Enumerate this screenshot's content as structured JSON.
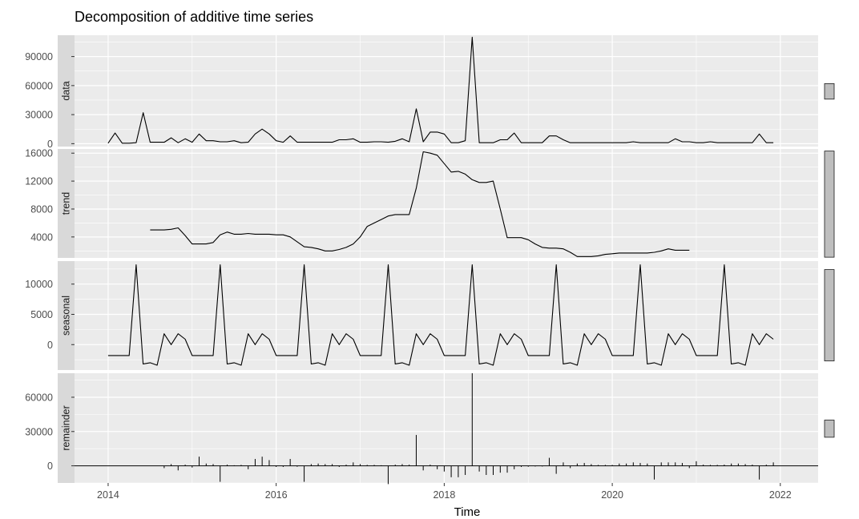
{
  "chart_data": {
    "type": "line",
    "title": "Decomposition of additive time series",
    "xlabel": "Time",
    "x_ticks": [
      2014,
      2016,
      2018,
      2020,
      2022
    ],
    "xlim": [
      2013.6,
      2022.45
    ],
    "colors": {
      "panel_bg": "#ebebeb",
      "grid": "#ffffff",
      "strip_bg": "#d9d9d9",
      "line": "#000000",
      "scale_bar": "#bebebe"
    },
    "panels": [
      {
        "name": "data",
        "type": "line",
        "ylim": [
          -3000,
          112000
        ],
        "y_ticks": [
          0,
          30000,
          60000,
          90000
        ],
        "y_tick_labels": [
          "0",
          "30000",
          "60000",
          "90000"
        ],
        "scale_bar": [
          46000,
          62000
        ],
        "series": [
          [
            2014.0,
            500
          ],
          [
            2014.083,
            11000
          ],
          [
            2014.167,
            500
          ],
          [
            2014.25,
            500
          ],
          [
            2014.333,
            1000
          ],
          [
            2014.417,
            32000
          ],
          [
            2014.5,
            1500
          ],
          [
            2014.583,
            1500
          ],
          [
            2014.667,
            1500
          ],
          [
            2014.75,
            6000
          ],
          [
            2014.833,
            1000
          ],
          [
            2014.917,
            5000
          ],
          [
            2015.0,
            1500
          ],
          [
            2015.083,
            10000
          ],
          [
            2015.167,
            3000
          ],
          [
            2015.25,
            3000
          ],
          [
            2015.333,
            2000
          ],
          [
            2015.417,
            2000
          ],
          [
            2015.5,
            3000
          ],
          [
            2015.583,
            1000
          ],
          [
            2015.667,
            1500
          ],
          [
            2015.75,
            10000
          ],
          [
            2015.833,
            15000
          ],
          [
            2015.917,
            10000
          ],
          [
            2016.0,
            3000
          ],
          [
            2016.083,
            1500
          ],
          [
            2016.167,
            8000
          ],
          [
            2016.25,
            1500
          ],
          [
            2016.333,
            1500
          ],
          [
            2016.417,
            1500
          ],
          [
            2016.5,
            1500
          ],
          [
            2016.583,
            1500
          ],
          [
            2016.667,
            1500
          ],
          [
            2016.75,
            4000
          ],
          [
            2016.833,
            4000
          ],
          [
            2016.917,
            5000
          ],
          [
            2017.0,
            1500
          ],
          [
            2017.083,
            1500
          ],
          [
            2017.167,
            2000
          ],
          [
            2017.25,
            2000
          ],
          [
            2017.333,
            1500
          ],
          [
            2017.417,
            2500
          ],
          [
            2017.5,
            5000
          ],
          [
            2017.583,
            2000
          ],
          [
            2017.667,
            36000
          ],
          [
            2017.75,
            2000
          ],
          [
            2017.833,
            12000
          ],
          [
            2017.917,
            12000
          ],
          [
            2018.0,
            10000
          ],
          [
            2018.083,
            1000
          ],
          [
            2018.167,
            1000
          ],
          [
            2018.25,
            3000
          ],
          [
            2018.333,
            110000
          ],
          [
            2018.417,
            1000
          ],
          [
            2018.5,
            1000
          ],
          [
            2018.583,
            1000
          ],
          [
            2018.667,
            4000
          ],
          [
            2018.75,
            4000
          ],
          [
            2018.833,
            11000
          ],
          [
            2018.917,
            1000
          ],
          [
            2019.0,
            1000
          ],
          [
            2019.083,
            1000
          ],
          [
            2019.167,
            1000
          ],
          [
            2019.25,
            8000
          ],
          [
            2019.333,
            8000
          ],
          [
            2019.417,
            4000
          ],
          [
            2019.5,
            1000
          ],
          [
            2019.583,
            1000
          ],
          [
            2019.667,
            1000
          ],
          [
            2019.75,
            1000
          ],
          [
            2019.833,
            1000
          ],
          [
            2019.917,
            1000
          ],
          [
            2020.0,
            1000
          ],
          [
            2020.083,
            1000
          ],
          [
            2020.167,
            1000
          ],
          [
            2020.25,
            2000
          ],
          [
            2020.333,
            1000
          ],
          [
            2020.417,
            1000
          ],
          [
            2020.5,
            1000
          ],
          [
            2020.583,
            1000
          ],
          [
            2020.667,
            1000
          ],
          [
            2020.75,
            5000
          ],
          [
            2020.833,
            2000
          ],
          [
            2020.917,
            2000
          ],
          [
            2021.0,
            1000
          ],
          [
            2021.083,
            1000
          ],
          [
            2021.167,
            2000
          ],
          [
            2021.25,
            1000
          ],
          [
            2021.333,
            1000
          ],
          [
            2021.417,
            1000
          ],
          [
            2021.5,
            1000
          ],
          [
            2021.583,
            1000
          ],
          [
            2021.667,
            1000
          ],
          [
            2021.75,
            10000
          ],
          [
            2021.833,
            1000
          ],
          [
            2021.917,
            1000
          ]
        ]
      },
      {
        "name": "trend",
        "type": "line",
        "ylim": [
          1000,
          16600
        ],
        "y_ticks": [
          4000,
          8000,
          12000,
          16000
        ],
        "y_tick_labels": [
          "4000",
          "8000",
          "12000",
          "16000"
        ],
        "scale_bar": [
          1100,
          16300
        ],
        "series": [
          [
            2014.5,
            5000
          ],
          [
            2014.583,
            5000
          ],
          [
            2014.667,
            5000
          ],
          [
            2014.75,
            5100
          ],
          [
            2014.833,
            5300
          ],
          [
            2014.917,
            4200
          ],
          [
            2015.0,
            3000
          ],
          [
            2015.083,
            3000
          ],
          [
            2015.167,
            3000
          ],
          [
            2015.25,
            3200
          ],
          [
            2015.333,
            4300
          ],
          [
            2015.417,
            4700
          ],
          [
            2015.5,
            4400
          ],
          [
            2015.583,
            4400
          ],
          [
            2015.667,
            4500
          ],
          [
            2015.75,
            4400
          ],
          [
            2015.833,
            4400
          ],
          [
            2015.917,
            4400
          ],
          [
            2016.0,
            4300
          ],
          [
            2016.083,
            4300
          ],
          [
            2016.167,
            4000
          ],
          [
            2016.25,
            3300
          ],
          [
            2016.333,
            2600
          ],
          [
            2016.417,
            2500
          ],
          [
            2016.5,
            2300
          ],
          [
            2016.583,
            2000
          ],
          [
            2016.667,
            2000
          ],
          [
            2016.75,
            2200
          ],
          [
            2016.833,
            2500
          ],
          [
            2016.917,
            3000
          ],
          [
            2017.0,
            4000
          ],
          [
            2017.083,
            5500
          ],
          [
            2017.167,
            6000
          ],
          [
            2017.25,
            6500
          ],
          [
            2017.333,
            7000
          ],
          [
            2017.417,
            7200
          ],
          [
            2017.5,
            7200
          ],
          [
            2017.583,
            7200
          ],
          [
            2017.667,
            11000
          ],
          [
            2017.75,
            16200
          ],
          [
            2017.833,
            16000
          ],
          [
            2017.917,
            15700
          ],
          [
            2018.0,
            14500
          ],
          [
            2018.083,
            13300
          ],
          [
            2018.167,
            13400
          ],
          [
            2018.25,
            13000
          ],
          [
            2018.333,
            12200
          ],
          [
            2018.417,
            11800
          ],
          [
            2018.5,
            11800
          ],
          [
            2018.583,
            12000
          ],
          [
            2018.667,
            8000
          ],
          [
            2018.75,
            3900
          ],
          [
            2018.833,
            3900
          ],
          [
            2018.917,
            3900
          ],
          [
            2019.0,
            3600
          ],
          [
            2019.083,
            3000
          ],
          [
            2019.167,
            2500
          ],
          [
            2019.25,
            2400
          ],
          [
            2019.333,
            2400
          ],
          [
            2019.417,
            2300
          ],
          [
            2019.5,
            1800
          ],
          [
            2019.583,
            1200
          ],
          [
            2019.667,
            1200
          ],
          [
            2019.75,
            1200
          ],
          [
            2019.833,
            1300
          ],
          [
            2019.917,
            1500
          ],
          [
            2020.0,
            1600
          ],
          [
            2020.083,
            1700
          ],
          [
            2020.167,
            1700
          ],
          [
            2020.25,
            1700
          ],
          [
            2020.333,
            1700
          ],
          [
            2020.417,
            1700
          ],
          [
            2020.5,
            1800
          ],
          [
            2020.583,
            2000
          ],
          [
            2020.667,
            2300
          ],
          [
            2020.75,
            2100
          ],
          [
            2020.833,
            2100
          ],
          [
            2020.917,
            2100
          ]
        ]
      },
      {
        "name": "seasonal",
        "type": "line",
        "ylim": [
          -4200,
          13800
        ],
        "y_ticks": [
          0,
          5000,
          10000
        ],
        "y_tick_labels": [
          "0",
          "5000",
          "10000"
        ],
        "scale_bar": [
          -2700,
          12400
        ],
        "season_pattern": [
          -1800,
          -1800,
          -1800,
          -1800,
          13200,
          -3200,
          -3000,
          -3400,
          1800,
          0,
          1800,
          900
        ],
        "season_start": 2014.0,
        "season_periods": 96
      },
      {
        "name": "remainder",
        "type": "bar",
        "ylim": [
          -15000,
          81000
        ],
        "y_ticks": [
          0,
          30000,
          60000
        ],
        "y_tick_labels": [
          "0",
          "30000",
          "60000"
        ],
        "scale_bar": [
          25000,
          40000
        ],
        "series": [
          [
            2014.667,
            -2000
          ],
          [
            2014.75,
            1500
          ],
          [
            2014.833,
            -4000
          ],
          [
            2014.917,
            1000
          ],
          [
            2015.0,
            -1500
          ],
          [
            2015.083,
            8000
          ],
          [
            2015.167,
            2000
          ],
          [
            2015.25,
            1500
          ],
          [
            2015.333,
            -14000
          ],
          [
            2015.417,
            1000
          ],
          [
            2015.5,
            500
          ],
          [
            2015.583,
            800
          ],
          [
            2015.667,
            -3000
          ],
          [
            2015.75,
            6000
          ],
          [
            2015.833,
            8000
          ],
          [
            2015.917,
            5000
          ],
          [
            2016.0,
            -1000
          ],
          [
            2016.083,
            -1000
          ],
          [
            2016.167,
            6000
          ],
          [
            2016.25,
            -800
          ],
          [
            2016.333,
            -14000
          ],
          [
            2016.417,
            1500
          ],
          [
            2016.5,
            2000
          ],
          [
            2016.583,
            1500
          ],
          [
            2016.667,
            1500
          ],
          [
            2016.75,
            -1000
          ],
          [
            2016.833,
            1000
          ],
          [
            2016.917,
            3000
          ],
          [
            2017.0,
            1500
          ],
          [
            2017.083,
            800
          ],
          [
            2017.167,
            800
          ],
          [
            2017.25,
            500
          ],
          [
            2017.333,
            -16000
          ],
          [
            2017.417,
            1000
          ],
          [
            2017.5,
            1500
          ],
          [
            2017.583,
            1000
          ],
          [
            2017.667,
            27000
          ],
          [
            2017.75,
            -4000
          ],
          [
            2017.833,
            1000
          ],
          [
            2017.917,
            -3000
          ],
          [
            2018.0,
            -5000
          ],
          [
            2018.083,
            -10000
          ],
          [
            2018.167,
            -10000
          ],
          [
            2018.25,
            -8000
          ],
          [
            2018.333,
            81000
          ],
          [
            2018.417,
            -5000
          ],
          [
            2018.5,
            -8000
          ],
          [
            2018.583,
            -8000
          ],
          [
            2018.667,
            -6000
          ],
          [
            2018.75,
            -6000
          ],
          [
            2018.833,
            -3000
          ],
          [
            2018.917,
            -1000
          ],
          [
            2019.0,
            -800
          ],
          [
            2019.083,
            -600
          ],
          [
            2019.167,
            -600
          ],
          [
            2019.25,
            7000
          ],
          [
            2019.333,
            -7000
          ],
          [
            2019.417,
            3000
          ],
          [
            2019.5,
            -2000
          ],
          [
            2019.583,
            2000
          ],
          [
            2019.667,
            2500
          ],
          [
            2019.75,
            1500
          ],
          [
            2019.833,
            800
          ],
          [
            2019.917,
            800
          ],
          [
            2020.0,
            800
          ],
          [
            2020.083,
            2000
          ],
          [
            2020.167,
            2000
          ],
          [
            2020.25,
            3000
          ],
          [
            2020.333,
            2500
          ],
          [
            2020.417,
            2000
          ],
          [
            2020.5,
            -12000
          ],
          [
            2020.583,
            3000
          ],
          [
            2020.667,
            3000
          ],
          [
            2020.75,
            3000
          ],
          [
            2020.833,
            2500
          ],
          [
            2020.917,
            -2000
          ],
          [
            2021.0,
            4000
          ],
          [
            2021.083,
            1000
          ],
          [
            2021.167,
            800
          ],
          [
            2021.25,
            800
          ],
          [
            2021.333,
            1000
          ],
          [
            2021.417,
            2000
          ],
          [
            2021.5,
            2000
          ],
          [
            2021.583,
            1500
          ],
          [
            2021.667,
            1000
          ],
          [
            2021.75,
            -12000
          ],
          [
            2021.833,
            1000
          ],
          [
            2021.917,
            3000
          ]
        ]
      }
    ]
  }
}
